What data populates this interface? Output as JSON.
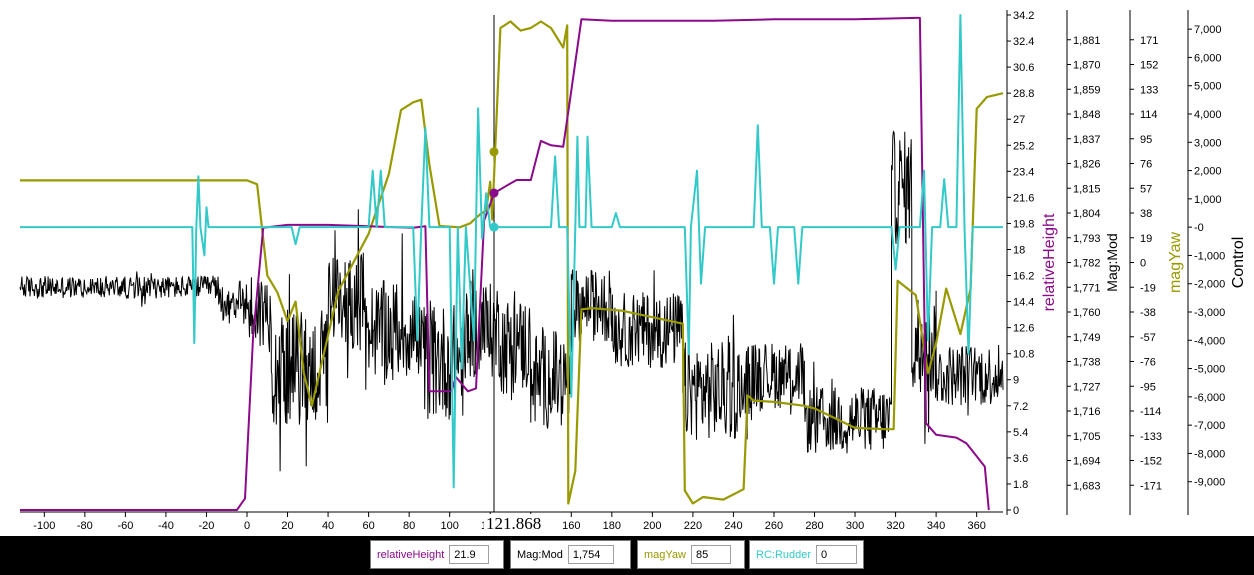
{
  "chart_data": {
    "type": "line",
    "x_axis": {
      "ticks": [
        "-100",
        "-80",
        "-60",
        "-40",
        "-20",
        "0",
        "20",
        "40",
        "60",
        "80",
        "100",
        "120",
        "140",
        "160",
        "180",
        "200",
        "220",
        "240",
        "260",
        "280",
        "300",
        "320",
        "340",
        "360"
      ],
      "range": [
        -112,
        373
      ]
    },
    "cursor": {
      "x": 121.868,
      "label": "121.868"
    },
    "axes": [
      {
        "id": "relativeHeight",
        "label": "relativeHeight",
        "color": "#8b0a8b",
        "range": [
          0,
          34.2
        ],
        "ticks": [
          "0",
          "1.8",
          "3.6",
          "5.4",
          "7.2",
          "9",
          "10.8",
          "12.6",
          "14.4",
          "16.2",
          "18",
          "19.8",
          "21.6",
          "23.4",
          "25.2",
          "27",
          "28.8",
          "30.6",
          "32.4",
          "34.2"
        ]
      },
      {
        "id": "magMod",
        "label": "Mag:Mod",
        "color": "#000000",
        "range": [
          1672,
          1892
        ],
        "ticks": [
          "1,683",
          "1,694",
          "1,705",
          "1,716",
          "1,727",
          "1,738",
          "1,749",
          "1,760",
          "1,771",
          "1,782",
          "1,793",
          "1,804",
          "1,815",
          "1,826",
          "1,837",
          "1,848",
          "1,859",
          "1,870",
          "1,881"
        ]
      },
      {
        "id": "magYaw",
        "label": "magYaw",
        "color": "#999900",
        "range": [
          -190,
          190
        ],
        "ticks": [
          "-171",
          "-152",
          "-133",
          "-114",
          "-95",
          "-76",
          "-57",
          "-38",
          "-19",
          "0",
          "19",
          "38",
          "57",
          "76",
          "95",
          "114",
          "133",
          "152",
          "171"
        ]
      },
      {
        "id": "control",
        "label": "Control",
        "color": "#000000",
        "range": [
          -10000,
          7500
        ],
        "ticks": [
          "-9,000",
          "-8,000",
          "-7,000",
          "-6,000",
          "-5,000",
          "-4,000",
          "-3,000",
          "-2,000",
          "-1,000",
          "-0",
          "1,000",
          "2,000",
          "3,000",
          "4,000",
          "5,000",
          "6,000",
          "7,000"
        ]
      }
    ],
    "series": [
      {
        "name": "relativeHeight",
        "axis": "relativeHeight",
        "color": "#8b0a8b",
        "points": [
          [
            -112,
            0
          ],
          [
            -5,
            0
          ],
          [
            -1,
            0.8
          ],
          [
            3,
            12
          ],
          [
            8,
            19.5
          ],
          [
            20,
            19.7
          ],
          [
            40,
            19.7
          ],
          [
            60,
            19.6
          ],
          [
            82,
            19.5
          ],
          [
            88,
            19.6
          ],
          [
            90,
            8.2
          ],
          [
            101,
            8.2
          ],
          [
            103,
            9.2
          ],
          [
            109,
            8.2
          ],
          [
            113,
            8.4
          ],
          [
            117,
            20
          ],
          [
            122,
            21.9
          ],
          [
            128,
            22.4
          ],
          [
            133,
            22.8
          ],
          [
            140,
            22.8
          ],
          [
            145,
            25.5
          ],
          [
            150,
            25.2
          ],
          [
            156,
            25.1
          ],
          [
            159,
            28
          ],
          [
            165,
            33.9
          ],
          [
            180,
            33.8
          ],
          [
            200,
            33.8
          ],
          [
            230,
            33.8
          ],
          [
            260,
            33.9
          ],
          [
            300,
            33.9
          ],
          [
            330,
            34
          ],
          [
            332,
            34
          ],
          [
            335,
            6
          ],
          [
            340,
            5.2
          ],
          [
            350,
            5
          ],
          [
            355,
            4.6
          ],
          [
            364,
            3
          ],
          [
            366,
            0
          ]
        ]
      },
      {
        "name": "Mag:Mod",
        "axis": "magMod",
        "color": "#000000",
        "segments": [
          [
            -112,
            -14,
            1771,
            5
          ],
          [
            -14,
            0,
            1765,
            9
          ],
          [
            0,
            12,
            1760,
            18
          ],
          [
            12,
            40,
            1735,
            26
          ],
          [
            40,
            58,
            1765,
            22
          ],
          [
            58,
            84,
            1752,
            22
          ],
          [
            84,
            108,
            1738,
            26
          ],
          [
            108,
            125,
            1752,
            22
          ],
          [
            125,
            140,
            1745,
            22
          ],
          [
            140,
            160,
            1730,
            22
          ],
          [
            160,
            180,
            1763,
            16
          ],
          [
            180,
            215,
            1752,
            17
          ],
          [
            215,
            248,
            1725,
            22
          ],
          [
            248,
            275,
            1732,
            15
          ],
          [
            275,
            318,
            1712,
            15
          ],
          [
            318,
            328,
            1815,
            26
          ],
          [
            328,
            340,
            1745,
            25
          ],
          [
            340,
            373,
            1732,
            14
          ]
        ]
      },
      {
        "name": "magYaw",
        "axis": "magYaw",
        "color": "#999900",
        "points": [
          [
            -112,
            63
          ],
          [
            0,
            63
          ],
          [
            5,
            60
          ],
          [
            10,
            -10
          ],
          [
            15,
            -23
          ],
          [
            20,
            -45
          ],
          [
            24,
            -30
          ],
          [
            28,
            -85
          ],
          [
            32,
            -110
          ],
          [
            45,
            -22
          ],
          [
            60,
            22
          ],
          [
            70,
            68
          ],
          [
            76,
            117
          ],
          [
            82,
            123
          ],
          [
            86,
            125
          ],
          [
            90,
            75
          ],
          [
            95,
            28
          ],
          [
            105,
            27
          ],
          [
            110,
            30
          ],
          [
            115,
            37
          ],
          [
            118,
            40
          ],
          [
            120,
            62
          ],
          [
            121,
            33
          ],
          [
            125,
            180
          ],
          [
            130,
            185
          ],
          [
            135,
            178
          ],
          [
            140,
            180
          ],
          [
            145,
            185
          ],
          [
            150,
            180
          ],
          [
            156,
            165
          ],
          [
            158,
            182
          ],
          [
            158.5,
            -185
          ],
          [
            162,
            -160
          ],
          [
            165,
            -36
          ],
          [
            170,
            -35
          ],
          [
            185,
            -37
          ],
          [
            200,
            -42
          ],
          [
            215,
            -47
          ],
          [
            216,
            -175
          ],
          [
            220,
            -185
          ],
          [
            225,
            -180
          ],
          [
            235,
            -182
          ],
          [
            245,
            -174
          ],
          [
            247,
            -102
          ],
          [
            250,
            -106
          ],
          [
            260,
            -107
          ],
          [
            275,
            -110
          ],
          [
            280,
            -112
          ],
          [
            300,
            -127
          ],
          [
            315,
            -128
          ],
          [
            319,
            -128
          ],
          [
            321,
            -14
          ],
          [
            330,
            -25
          ],
          [
            336,
            -85
          ],
          [
            340,
            -62
          ],
          [
            345,
            -20
          ],
          [
            352,
            -55
          ],
          [
            357,
            -20
          ],
          [
            360,
            118
          ],
          [
            365,
            127
          ],
          [
            373,
            130
          ]
        ]
      },
      {
        "name": "RC:Rudder",
        "axis": "control",
        "color": "#33c9c9",
        "points": [
          [
            -112,
            0
          ],
          [
            -27,
            0
          ],
          [
            -26,
            -4100
          ],
          [
            -25,
            0
          ],
          [
            -24,
            1800
          ],
          [
            -23,
            0
          ],
          [
            -21,
            -1000
          ],
          [
            -20,
            700
          ],
          [
            -19,
            0
          ],
          [
            22,
            0
          ],
          [
            24,
            -600
          ],
          [
            26,
            0
          ],
          [
            60,
            0
          ],
          [
            62,
            2000
          ],
          [
            64,
            0
          ],
          [
            66,
            2000
          ],
          [
            68,
            0
          ],
          [
            82,
            0
          ],
          [
            84,
            -4000
          ],
          [
            86,
            0
          ],
          [
            88,
            3500
          ],
          [
            90,
            0
          ],
          [
            100,
            0
          ],
          [
            102,
            -9200
          ],
          [
            104,
            0
          ],
          [
            106,
            -5000
          ],
          [
            108,
            0
          ],
          [
            112,
            -4000
          ],
          [
            114,
            4200
          ],
          [
            116,
            -400
          ],
          [
            118,
            1200
          ],
          [
            120,
            0
          ],
          [
            150,
            0
          ],
          [
            152,
            2500
          ],
          [
            154,
            0
          ],
          [
            158,
            0
          ],
          [
            160,
            -6000
          ],
          [
            162,
            0
          ],
          [
            163,
            3200
          ],
          [
            164,
            0
          ],
          [
            167,
            0
          ],
          [
            168,
            3200
          ],
          [
            170,
            0
          ],
          [
            180,
            0
          ],
          [
            182,
            500
          ],
          [
            184,
            0
          ],
          [
            216,
            0
          ],
          [
            218,
            -4500
          ],
          [
            219,
            0
          ],
          [
            222,
            2000
          ],
          [
            224,
            -2000
          ],
          [
            226,
            0
          ],
          [
            250,
            0
          ],
          [
            252,
            3600
          ],
          [
            254,
            0
          ],
          [
            258,
            0
          ],
          [
            260,
            -2000
          ],
          [
            262,
            0
          ],
          [
            270,
            0
          ],
          [
            272,
            -2000
          ],
          [
            274,
            0
          ],
          [
            318,
            0
          ],
          [
            320,
            -1500
          ],
          [
            322,
            0
          ],
          [
            332,
            0
          ],
          [
            334,
            2000
          ],
          [
            336,
            -4000
          ],
          [
            338,
            0
          ],
          [
            342,
            0
          ],
          [
            344,
            1700
          ],
          [
            346,
            0
          ],
          [
            350,
            0
          ],
          [
            352,
            7500
          ],
          [
            354,
            0
          ],
          [
            356,
            -4500
          ],
          [
            358,
            0
          ],
          [
            373,
            0
          ]
        ]
      }
    ],
    "markers": [
      {
        "series": "relativeHeight",
        "x": 121.868,
        "y": 21.9
      },
      {
        "series": "magYaw",
        "x": 121.868,
        "y": 85
      },
      {
        "series": "RC:Rudder",
        "x": 121.868,
        "y": 0
      }
    ],
    "grid": false,
    "legend_position": "bottom"
  },
  "readouts": [
    {
      "label": "relativeHeight",
      "value": "21.9",
      "color": "#8b0a8b"
    },
    {
      "label": "Mag:Mod",
      "value": "1,754",
      "color": "#000000"
    },
    {
      "label": "magYaw",
      "value": "85",
      "color": "#999900"
    },
    {
      "label": "RC:Rudder",
      "value": "0",
      "color": "#33c9c9"
    }
  ]
}
